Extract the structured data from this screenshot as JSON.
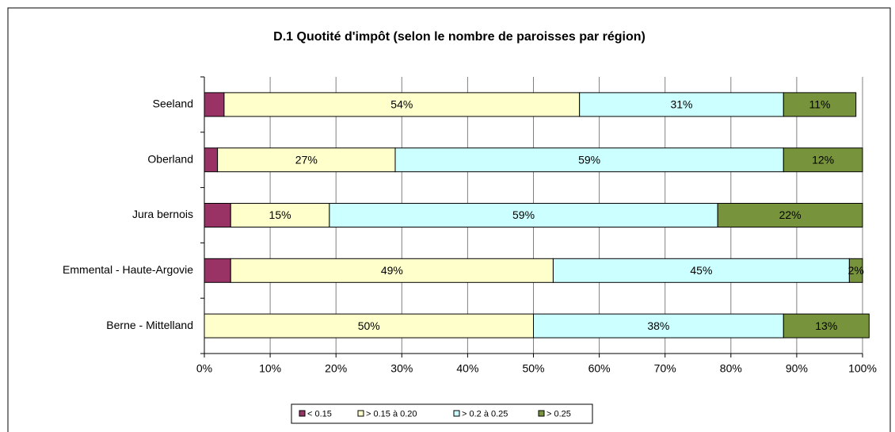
{
  "chart_data": {
    "type": "stacked-barh",
    "title": "D.1 Quotité d'impôt (selon le nombre de paroisses par région)",
    "categories": [
      "Seeland",
      "Oberland",
      "Jura bernois",
      "Emmental - Haute-Argovie",
      "Berne - Mittelland"
    ],
    "series": [
      {
        "name": "< 0.15",
        "color": "#993366",
        "values": [
          3,
          2,
          4,
          4,
          0
        ]
      },
      {
        "name": "> 0.15 à 0.20",
        "color": "#ffffcc",
        "values": [
          54,
          27,
          15,
          49,
          50
        ],
        "value_labels": [
          "54%",
          "27%",
          "15%",
          "49%",
          "50%"
        ]
      },
      {
        "name": "> 0.2 à 0.25",
        "color": "#ccffff",
        "values": [
          31,
          59,
          59,
          45,
          38
        ],
        "value_labels": [
          "31%",
          "59%",
          "59%",
          "45%",
          "38%"
        ]
      },
      {
        "name": "> 0.25",
        "color": "#77933c",
        "values": [
          11,
          12,
          22,
          2,
          13
        ],
        "value_labels": [
          "11%",
          "12%",
          "22%",
          "2%",
          "13%"
        ]
      }
    ],
    "xlim": [
      0,
      100
    ],
    "xticks": [
      {
        "value": 0,
        "label": "0%"
      },
      {
        "value": 10,
        "label": "10%"
      },
      {
        "value": 20,
        "label": "20%"
      },
      {
        "value": 30,
        "label": "30%"
      },
      {
        "value": 40,
        "label": "40%"
      },
      {
        "value": 50,
        "label": "50%"
      },
      {
        "value": 60,
        "label": "60%"
      },
      {
        "value": 70,
        "label": "70%"
      },
      {
        "value": 80,
        "label": "80%"
      },
      {
        "value": 90,
        "label": "90%"
      },
      {
        "value": 100,
        "label": "100%"
      }
    ],
    "grid": true,
    "legend": "bottom"
  }
}
